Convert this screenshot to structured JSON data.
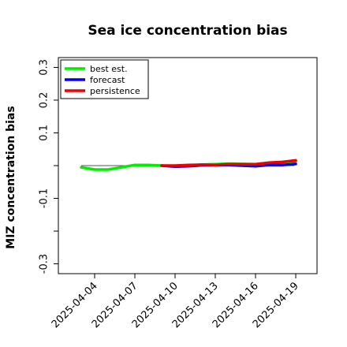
{
  "chart_data": {
    "type": "line",
    "title": "Sea ice concentration bias",
    "xlabel": "",
    "ylabel": "MIZ concentration bias",
    "ylim": [
      -0.33,
      0.33
    ],
    "yticks": [
      {
        "value": 0.3,
        "label": "0.3"
      },
      {
        "value": 0.2,
        "label": "0.2"
      },
      {
        "value": 0.1,
        "label": "0.1"
      },
      {
        "value": 0.0,
        "label": ""
      },
      {
        "value": -0.1,
        "label": "-0.1"
      },
      {
        "value": -0.2,
        "label": ""
      },
      {
        "value": -0.3,
        "label": "-0.3"
      }
    ],
    "xticks": [
      {
        "label": "2025-04-04",
        "color": "#000000"
      },
      {
        "label": "2025-04-07",
        "color": "#000000"
      },
      {
        "label": "2025-04-10",
        "color": "#228b22"
      },
      {
        "label": "2025-04-13",
        "color": "#000000"
      },
      {
        "label": "2025-04-16",
        "color": "#000000"
      },
      {
        "label": "2025-04-19",
        "color": "#000000"
      }
    ],
    "zero_line": true,
    "legend_position": "top-left",
    "series": [
      {
        "name": "best est.",
        "color": "#00ee00",
        "x": [
          "2025-04-03",
          "2025-04-04",
          "2025-04-05",
          "2025-04-06",
          "2025-04-07",
          "2025-04-08",
          "2025-04-09",
          "2025-04-10",
          "2025-04-11",
          "2025-04-12",
          "2025-04-13",
          "2025-04-14",
          "2025-04-15",
          "2025-04-16",
          "2025-04-17",
          "2025-04-18",
          "2025-04-19"
        ],
        "values": [
          -0.005,
          -0.012,
          -0.012,
          -0.005,
          0.002,
          0.002,
          0.0,
          -0.002,
          0.0,
          0.003,
          0.004,
          0.006,
          0.005,
          0.004,
          0.008,
          0.01,
          0.013
        ]
      },
      {
        "name": "forecast",
        "color": "#0000ee",
        "x": [
          "2025-04-09",
          "2025-04-10",
          "2025-04-11",
          "2025-04-12",
          "2025-04-13",
          "2025-04-14",
          "2025-04-15",
          "2025-04-16",
          "2025-04-17",
          "2025-04-18",
          "2025-04-19"
        ],
        "values": [
          0.0,
          -0.003,
          -0.002,
          0.001,
          0.002,
          0.002,
          0.0,
          -0.002,
          0.002,
          0.002,
          0.005
        ]
      },
      {
        "name": "persistence",
        "color": "#ee0000",
        "x": [
          "2025-04-09",
          "2025-04-10",
          "2025-04-11",
          "2025-04-12",
          "2025-04-13",
          "2025-04-14",
          "2025-04-15",
          "2025-04-16",
          "2025-04-17",
          "2025-04-18",
          "2025-04-19"
        ],
        "values": [
          0.0,
          0.0,
          0.002,
          0.003,
          0.002,
          0.004,
          0.004,
          0.004,
          0.009,
          0.011,
          0.016
        ]
      }
    ]
  }
}
